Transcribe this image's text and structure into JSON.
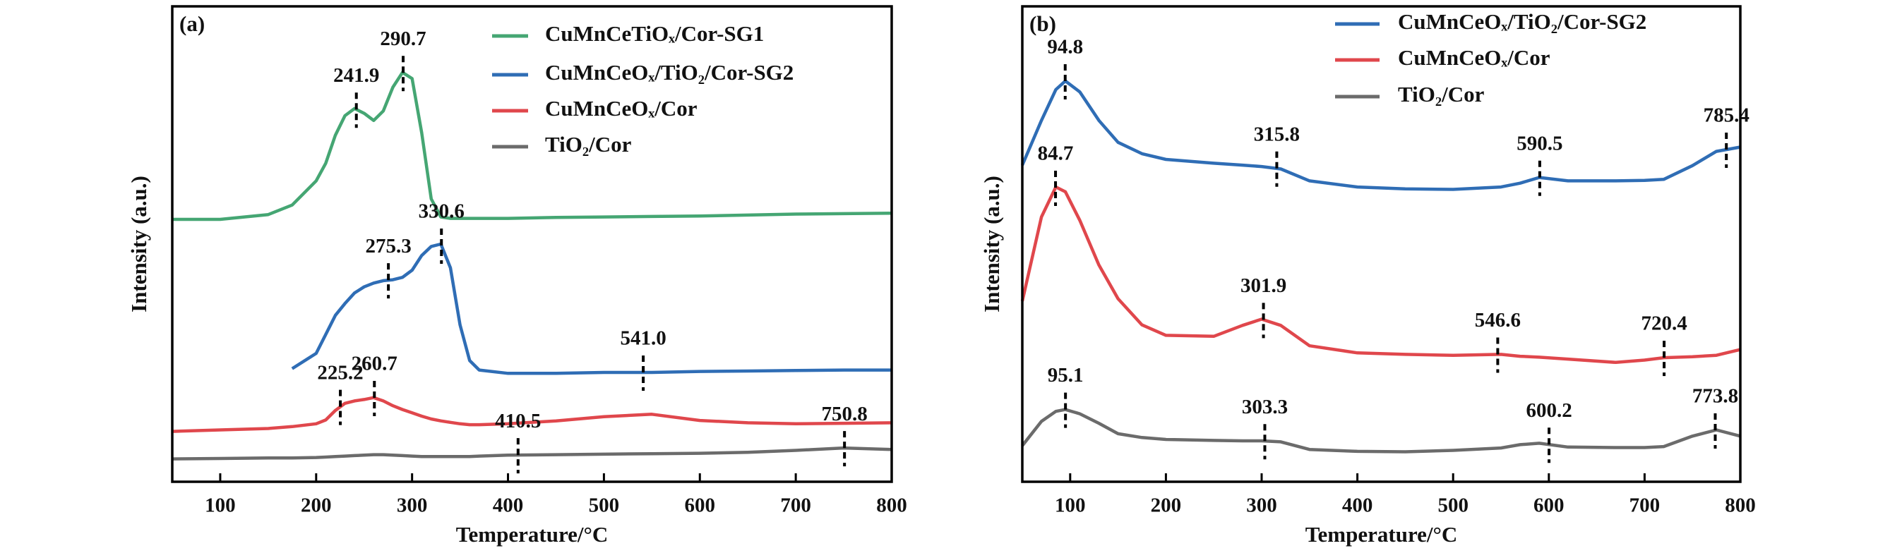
{
  "chart_data": [
    {
      "type": "line",
      "panel_label": "(a)",
      "xlabel": "Temperature/°C",
      "ylabel": "Intensity (a.u.)",
      "xlim": [
        50,
        800
      ],
      "xticks": [
        100,
        200,
        300,
        400,
        500,
        600,
        700,
        800
      ],
      "ylim": [
        0,
        100
      ],
      "legend": "upper right",
      "x": [
        50,
        100,
        150,
        175,
        200,
        210,
        220,
        230,
        240,
        250,
        260,
        270,
        280,
        290,
        300,
        310,
        320,
        330,
        340,
        350,
        360,
        370,
        400,
        450,
        500,
        550,
        600,
        650,
        700,
        750,
        800
      ],
      "series": [
        {
          "name": "CuMnCeTiOₓ/Cor-SG1",
          "color": "#45a673",
          "values": [
            55.2,
            55.2,
            56.2,
            58.2,
            63.3,
            67,
            72.9,
            77,
            78.5,
            77.5,
            76,
            78,
            83,
            86.1,
            84.8,
            73.4,
            59.5,
            55.7,
            55.4,
            55.4,
            55.4,
            55.4,
            55.4,
            55.6,
            55.7,
            55.8,
            55.9,
            56.1,
            56.3,
            56.4,
            56.5
          ],
          "peaks": [
            241.9,
            290.7
          ]
        },
        {
          "name": "CuMnCeOₓ/TiO₂/Cor-SG2",
          "color": "#2f6db5",
          "values": [
            null,
            null,
            null,
            23.8,
            27,
            31,
            35,
            37.5,
            39.7,
            41,
            41.8,
            42.3,
            42.5,
            43,
            44.5,
            47.6,
            49.5,
            50,
            45,
            33,
            25.5,
            23.5,
            22.8,
            22.8,
            23,
            23,
            23.2,
            23.3,
            23.4,
            23.5,
            23.5
          ],
          "peaks": [
            275.3,
            330.6,
            {
              "value": 541,
              "label": "541.0"
            }
          ]
        },
        {
          "name": "CuMnCeOₓ/Cor",
          "color": "#e0474c",
          "values": [
            10.6,
            10.9,
            11.2,
            11.6,
            12.2,
            13,
            15,
            16.5,
            17,
            17.3,
            17.7,
            17,
            16,
            15.2,
            14.5,
            13.8,
            13.2,
            12.8,
            12.5,
            12.2,
            12,
            12,
            12.2,
            12.8,
            13.7,
            14.2,
            12.9,
            12.4,
            12.2,
            12.3,
            12.4
          ],
          "peaks": [
            225.2,
            260.7
          ]
        },
        {
          "name": "TiO₂/Cor",
          "color": "#6b6b6b",
          "values": [
            4.8,
            4.9,
            5,
            5,
            5.1,
            5.2,
            5.3,
            5.4,
            5.5,
            5.6,
            5.7,
            5.7,
            5.6,
            5.5,
            5.4,
            5.3,
            5.3,
            5.3,
            5.3,
            5.3,
            5.3,
            5.4,
            5.6,
            5.7,
            5.8,
            5.9,
            6,
            6.2,
            6.6,
            7.1,
            6.8
          ],
          "peaks": [
            410.5,
            750.8
          ]
        }
      ]
    },
    {
      "type": "line",
      "panel_label": "(b)",
      "xlabel": "Temperature/°C",
      "ylabel": "Intensity (a.u.)",
      "xlim": [
        50,
        800
      ],
      "xticks": [
        100,
        200,
        300,
        400,
        500,
        600,
        700,
        800
      ],
      "ylim": [
        0,
        100
      ],
      "legend": "upper center",
      "x": [
        50,
        70,
        85,
        95,
        110,
        130,
        150,
        175,
        200,
        250,
        280,
        300,
        320,
        350,
        400,
        450,
        500,
        550,
        570,
        590,
        620,
        670,
        700,
        720,
        750,
        775,
        800
      ],
      "series": [
        {
          "name": "CuMnCeOₓ/TiO₂/Cor-SG2",
          "color": "#2f6db5",
          "values": [
            66.6,
            76,
            82.5,
            84.3,
            82,
            76,
            71.4,
            69,
            67.8,
            67,
            66.6,
            66.3,
            65.8,
            63.3,
            62,
            61.6,
            61.5,
            62,
            62.8,
            64,
            63.3,
            63.3,
            63.4,
            63.6,
            66.5,
            69.5,
            70.4
          ],
          "peaks": [
            94.8,
            315.8,
            590.5,
            785.4
          ]
        },
        {
          "name": "CuMnCeOₓ/Cor",
          "color": "#e0474c",
          "values": [
            38,
            55.7,
            62,
            61,
            55,
            45.6,
            38.5,
            33,
            30.8,
            30.6,
            32.9,
            34.2,
            32.9,
            28.6,
            27.1,
            26.8,
            26.6,
            26.8,
            26.4,
            26.2,
            25.8,
            25.1,
            25.6,
            26.1,
            26.3,
            26.6,
            27.8
          ],
          "peaks": [
            84.7,
            301.9,
            546.6,
            720.4
          ]
        },
        {
          "name": "TiO₂/Cor",
          "color": "#6b6b6b",
          "values": [
            7.6,
            12.7,
            14.8,
            15.2,
            14.3,
            12.3,
            10.1,
            9.3,
            8.9,
            8.7,
            8.6,
            8.6,
            8.4,
            6.8,
            6.4,
            6.3,
            6.6,
            7.1,
            7.8,
            8.1,
            7.3,
            7.2,
            7.2,
            7.4,
            9.6,
            10.9,
            9.6
          ],
          "peaks": [
            95.1,
            303.3,
            600.2,
            773.8
          ]
        }
      ]
    }
  ]
}
